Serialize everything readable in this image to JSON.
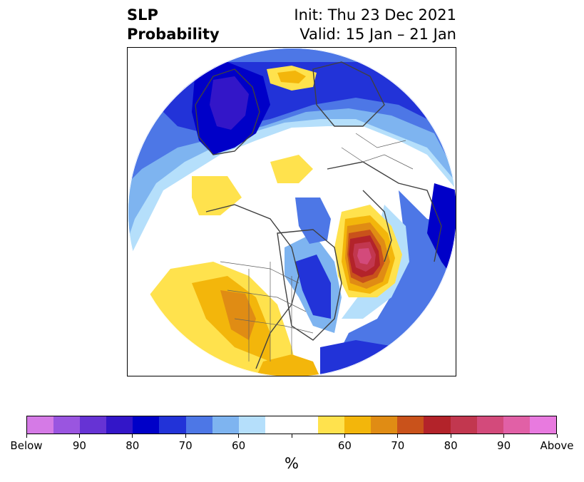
{
  "title": {
    "line1": "SLP",
    "line2": "Probability"
  },
  "init_text": "Init: Thu 23 Dec 2021",
  "valid_text": "Valid: 15 Jan – 21 Jan",
  "map": {
    "projection": "polar-stereographic",
    "features": [
      "coastlines",
      "country-borders",
      "us-state-borders",
      "canada-province-borders"
    ],
    "background_color": "#ffffff"
  },
  "colorbar": {
    "unit": "%",
    "colors": [
      "#d57ae6",
      "#9a55e0",
      "#6633d4",
      "#3316c8",
      "#0000c8",
      "#2233d8",
      "#4d77e6",
      "#7eb4f0",
      "#b5dffb",
      "#ffffff",
      "#ffffff",
      "#ffe24d",
      "#f3b60b",
      "#e08c14",
      "#c9521b",
      "#b3232a",
      "#c2374f",
      "#d34a7b",
      "#e160a6",
      "#e87adf"
    ],
    "tick_labels": [
      "Below",
      "90",
      "80",
      "70",
      "60",
      "",
      "60",
      "70",
      "80",
      "90",
      "Above"
    ]
  },
  "chart_data": {
    "type": "heatmap",
    "title": "SLP Probability",
    "legend": "bottom colorbar",
    "value_unit": "%",
    "categories": [
      "Below",
      "Above"
    ],
    "scale_labels": [
      "Below",
      "90",
      "80",
      "70",
      "60",
      "60",
      "70",
      "80",
      "90",
      "Above"
    ]
  }
}
